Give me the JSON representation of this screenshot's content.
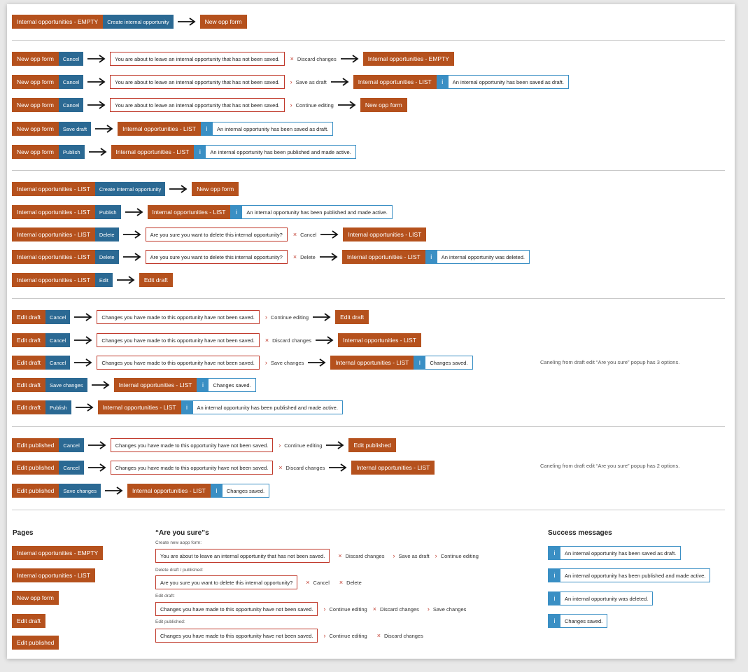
{
  "pages": {
    "empty": "Internal opportunities - EMPTY",
    "list": "Internal opportunities - LIST",
    "new_form": "New opp form",
    "edit_draft": "Edit draft",
    "edit_published": "Edit published"
  },
  "actions": {
    "create": "Create internal opportunity",
    "cancel": "Cancel",
    "save_draft": "Save draft",
    "publish": "Publish",
    "delete": "Delete",
    "edit": "Edit",
    "save_changes": "Save changes"
  },
  "popups": {
    "leave": "You are about to leave an internal opportunity that has not been saved.",
    "delete_confirm": "Are you sure you want to delete this internal opportunity?",
    "unsaved_changes": "Changes you have made to this opportunity have not been saved."
  },
  "options": {
    "discard": "Discard changes",
    "save_as_draft": "Save as draft",
    "continue": "Continue editing",
    "cancel": "Cancel",
    "delete": "Delete",
    "save_changes": "Save changes"
  },
  "messages": {
    "info": "i",
    "saved_draft": "An internal opportunity has been saved as draft.",
    "published": "An internal opportunity has been published and made active.",
    "deleted": "An internal opportunity was deleted.",
    "changes_saved": "Changes saved."
  },
  "notes": {
    "draft_options": "Caneling from draft edit “Are you sure” popup has 3 options.",
    "published_options": "Caneling from draft edit “Are you sure” popup has 2 options."
  },
  "legend": {
    "pages_title": "Pages",
    "popups_title": "“Are you sure”s",
    "success_title": "Success messages",
    "create_label": "Create new aopp form:",
    "delete_label": "Delete draft / published:",
    "edit_draft_label": "Edit draft:",
    "edit_published_label": "Edit published:"
  },
  "colors": {
    "page": "#b5511d",
    "action": "#2b6993",
    "popup_border": "#c0392b",
    "message": "#3a8fc4"
  }
}
